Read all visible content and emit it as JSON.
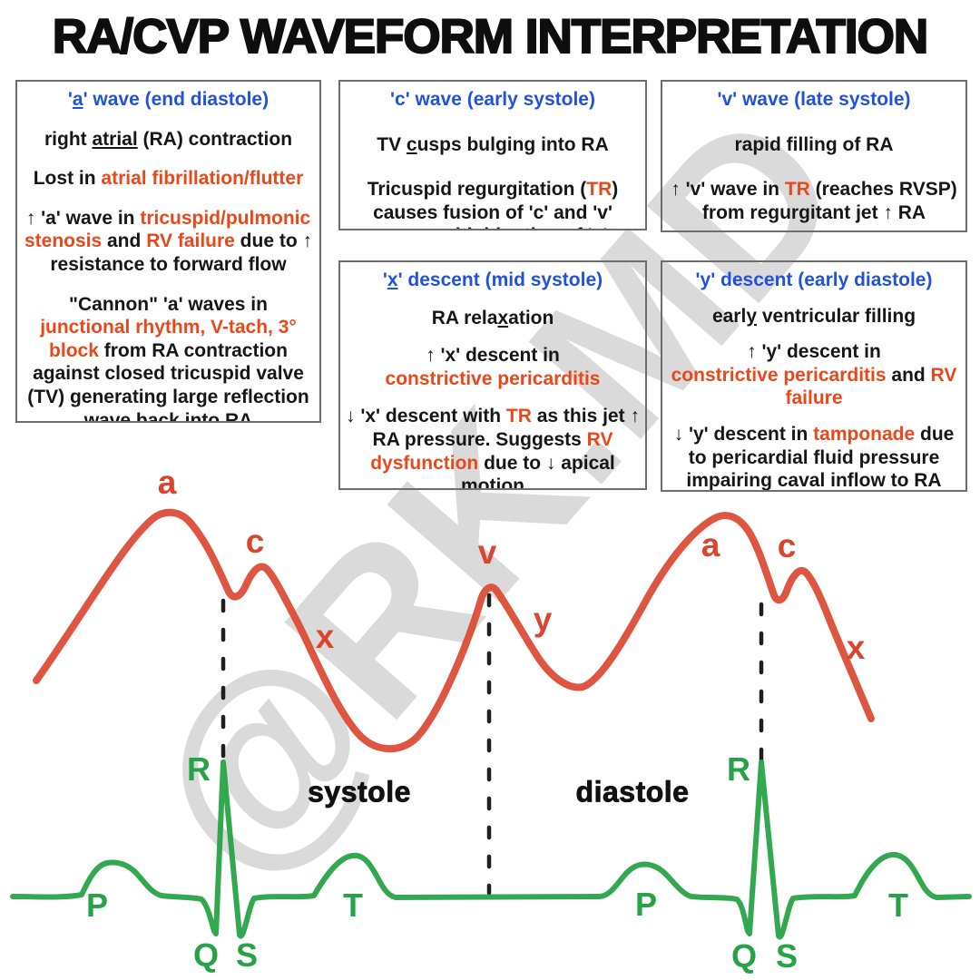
{
  "title": "RA/CVP WAVEFORM INTERPRETATION",
  "watermark": "@RK.MD",
  "colors": {
    "blue": "#2052dd",
    "orange": "#e8481a",
    "black": "#161616",
    "cvp_red": "#dc4833",
    "ecg_green": "#27a347",
    "dash_black": "#1f1f1f"
  },
  "boxes": {
    "a_wave": {
      "title": [
        {
          "t": "'"
        },
        {
          "t": "a",
          "u": true
        },
        {
          "t": "' wave (end diastole)"
        }
      ],
      "body": [
        [
          {
            "t": "right "
          },
          {
            "t": "atrial",
            "u": true
          },
          {
            "t": " (RA) contraction"
          }
        ],
        [
          {
            "t": "Lost in "
          },
          {
            "t": "atrial fibrillation/flutter",
            "c": "orange"
          }
        ],
        [
          {
            "t": "↑ 'a' wave in "
          },
          {
            "t": "tricuspid/pulmonic stenosis",
            "c": "orange"
          },
          {
            "t": " and "
          },
          {
            "t": "RV failure",
            "c": "orange"
          },
          {
            "t": " due to ↑ resistance to forward flow"
          }
        ],
        [
          {
            "t": "\"Cannon\" 'a' waves in "
          },
          {
            "t": "junctional rhythm, V-tach, 3° block",
            "c": "orange"
          },
          {
            "t": " from RA contraction against closed tricuspid valve (TV) generating large reflection wave back into RA"
          }
        ]
      ]
    },
    "c_wave": {
      "title": [
        {
          "t": "'c' wave (early systole)"
        }
      ],
      "body": [
        [
          {
            "t": "TV "
          },
          {
            "t": "c",
            "u": true
          },
          {
            "t": "usps bulging into RA"
          }
        ],
        [
          {
            "t": "Tricuspid regurgitation ("
          },
          {
            "t": "TR",
            "c": "orange"
          },
          {
            "t": ")"
          },
          {
            "br": true
          },
          {
            "t": "causes fusion of 'c' and 'v' waves with blunting of 'x' descent"
          }
        ]
      ]
    },
    "v_wave": {
      "title": [
        {
          "t": "'v' wave (late systole)"
        }
      ],
      "body": [
        [
          {
            "t": "rapid filling of RA"
          }
        ],
        [
          {
            "t": "↑ 'v' wave in "
          },
          {
            "t": "TR",
            "c": "orange"
          },
          {
            "t": " (reaches RVSP) from regurgitant jet ↑ RA pressure"
          }
        ]
      ]
    },
    "x_descent": {
      "title": [
        {
          "t": "'"
        },
        {
          "t": "x",
          "u": true
        },
        {
          "t": "' descent (mid systole)"
        }
      ],
      "body": [
        [
          {
            "t": "RA rela"
          },
          {
            "t": "x",
            "u": true
          },
          {
            "t": "ation"
          }
        ],
        [
          {
            "t": "↑ 'x' descent in"
          },
          {
            "br": true
          },
          {
            "t": "constrictive pericarditis",
            "c": "orange"
          }
        ],
        [
          {
            "t": "↓ 'x' descent with "
          },
          {
            "t": "TR",
            "c": "orange"
          },
          {
            "t": " as this jet ↑ RA pressure. Suggests "
          },
          {
            "t": "RV dysfunction",
            "c": "orange"
          },
          {
            "t": " due to ↓ apical motion"
          }
        ]
      ]
    },
    "y_descent": {
      "title": [
        {
          "t": "'y' descent (early diastole)"
        }
      ],
      "body": [
        [
          {
            "t": "earl"
          },
          {
            "t": "y",
            "u": true
          },
          {
            "t": " ventricular filling"
          }
        ],
        [
          {
            "t": "↑ 'y' descent in"
          },
          {
            "br": true
          },
          {
            "t": "constrictive pericarditis",
            "c": "orange"
          },
          {
            "t": " and "
          },
          {
            "t": "RV failure",
            "c": "orange"
          }
        ],
        [
          {
            "t": "↓ 'y' descent in "
          },
          {
            "t": "tamponade",
            "c": "orange"
          },
          {
            "t": " due to pericardial fluid pressure impairing caval inflow to RA and"
          }
        ]
      ]
    }
  },
  "cvp_labels": {
    "a1": "a",
    "c1": "c",
    "x1": "x",
    "v": "v",
    "y": "y",
    "a2": "a",
    "c2": "c",
    "x2": "x"
  },
  "ecg_labels": {
    "p1": "P",
    "q1": "Q",
    "r1": "R",
    "s1": "S",
    "t1": "T",
    "p2": "P",
    "q2": "Q",
    "r2": "R",
    "s2": "S",
    "t2": "T"
  },
  "phase_labels": {
    "systole": "systole",
    "diastole": "diastole"
  }
}
